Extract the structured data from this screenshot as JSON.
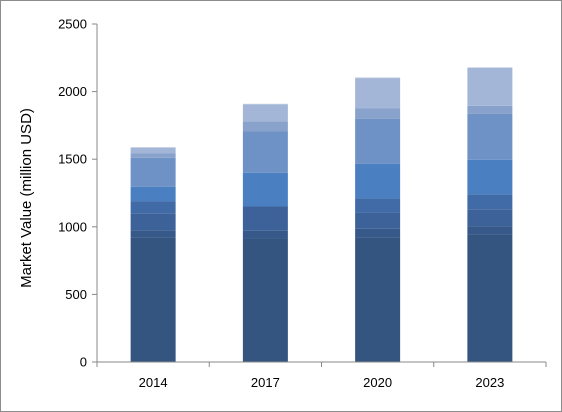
{
  "chart_data": {
    "type": "bar",
    "stacked": true,
    "title": "",
    "xlabel": "",
    "ylabel": "Market Value (million USD)",
    "ylim": [
      0,
      2500
    ],
    "yticks": [
      0,
      500,
      1000,
      1500,
      2000,
      2500
    ],
    "categories": [
      "2014",
      "2017",
      "2020",
      "2023"
    ],
    "grid": false,
    "legend": "none",
    "series": [
      {
        "color": "#34557f",
        "values": [
          920,
          910,
          920,
          940
        ]
      },
      {
        "color": "#37598a",
        "values": [
          55,
          60,
          65,
          65
        ]
      },
      {
        "color": "#3d6299",
        "values": [
          125,
          180,
          120,
          125
        ]
      },
      {
        "color": "#416ba7",
        "values": [
          90,
          0,
          105,
          110
        ]
      },
      {
        "color": "#4a7fc1",
        "values": [
          105,
          250,
          255,
          255
        ]
      },
      {
        "color": "#6f92c6",
        "values": [
          215,
          305,
          335,
          340
        ]
      },
      {
        "color": "#88a2cb",
        "values": [
          35,
          75,
          75,
          60
        ]
      },
      {
        "color": "#a3b6d7",
        "values": [
          40,
          125,
          225,
          280
        ]
      },
      {
        "color": "#c5d0e4",
        "values": [
          5,
          5,
          5,
          5
        ]
      }
    ]
  }
}
